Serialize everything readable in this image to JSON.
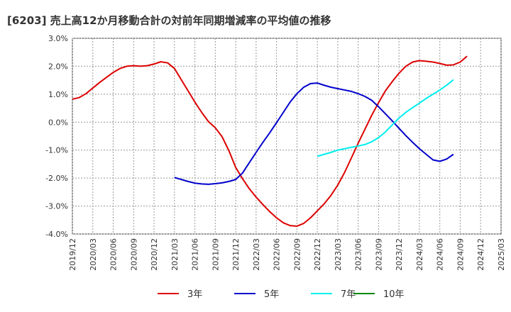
{
  "chart_data": {
    "type": "line",
    "title": "[6203]  売上高12か月移動合計の対前年同期増減率の平均値の推移",
    "xlabel": "",
    "ylabel": "",
    "ylim": [
      -4.0,
      3.0
    ],
    "yticks": [
      3.0,
      2.0,
      1.0,
      0.0,
      -1.0,
      -2.0,
      -3.0,
      -4.0
    ],
    "ytick_labels": [
      "3.0%",
      "2.0%",
      "1.0%",
      "0.0%",
      "-1.0%",
      "-2.0%",
      "-3.0%",
      "-4.0%"
    ],
    "xlim": [
      "2019/12",
      "2025/03"
    ],
    "xtick_labels": [
      "2019/12",
      "2020/03",
      "2020/06",
      "2020/09",
      "2020/12",
      "2021/03",
      "2021/06",
      "2021/09",
      "2021/12",
      "2022/03",
      "2022/06",
      "2022/09",
      "2022/12",
      "2023/03",
      "2023/06",
      "2023/09",
      "2023/12",
      "2024/03",
      "2024/06",
      "2024/09",
      "2024/12",
      "2025/03"
    ],
    "grid": true,
    "legend_position": "bottom",
    "series": [
      {
        "name": "3年",
        "color": "#dd0000",
        "points": [
          [
            "2019/12",
            0.82
          ],
          [
            "2020/01",
            0.88
          ],
          [
            "2020/02",
            1.02
          ],
          [
            "2020/03",
            1.22
          ],
          [
            "2020/04",
            1.42
          ],
          [
            "2020/05",
            1.6
          ],
          [
            "2020/06",
            1.78
          ],
          [
            "2020/07",
            1.92
          ],
          [
            "2020/08",
            2.0
          ],
          [
            "2020/09",
            2.02
          ],
          [
            "2020/10",
            2.0
          ],
          [
            "2020/11",
            2.02
          ],
          [
            "2020/12",
            2.08
          ],
          [
            "2020/13",
            2.16
          ],
          [
            "2021/02",
            2.12
          ],
          [
            "2021/03",
            1.92
          ],
          [
            "2021/04",
            1.52
          ],
          [
            "2021/05",
            1.12
          ],
          [
            "2021/06",
            0.72
          ],
          [
            "2021/07",
            0.35
          ],
          [
            "2021/08",
            0.02
          ],
          [
            "2021/09",
            -0.2
          ],
          [
            "2021/10",
            -0.52
          ],
          [
            "2021/11",
            -1.02
          ],
          [
            "2021/12",
            -1.62
          ],
          [
            "2022/01",
            -2.02
          ],
          [
            "2022/02",
            -2.38
          ],
          [
            "2022/03",
            -2.68
          ],
          [
            "2022/04",
            -2.95
          ],
          [
            "2022/05",
            -3.2
          ],
          [
            "2022/06",
            -3.42
          ],
          [
            "2022/07",
            -3.6
          ],
          [
            "2022/08",
            -3.7
          ],
          [
            "2022/09",
            -3.72
          ],
          [
            "2022/10",
            -3.62
          ],
          [
            "2022/11",
            -3.42
          ],
          [
            "2022/12",
            -3.17
          ],
          [
            "2023/01",
            -2.92
          ],
          [
            "2023/02",
            -2.62
          ],
          [
            "2023/03",
            -2.25
          ],
          [
            "2023/04",
            -1.8
          ],
          [
            "2023/05",
            -1.28
          ],
          [
            "2023/06",
            -0.75
          ],
          [
            "2023/07",
            -0.25
          ],
          [
            "2023/08",
            0.25
          ],
          [
            "2023/09",
            0.7
          ],
          [
            "2023/10",
            1.12
          ],
          [
            "2023/11",
            1.45
          ],
          [
            "2023/12",
            1.75
          ],
          [
            "2024/01",
            2.0
          ],
          [
            "2024/02",
            2.15
          ],
          [
            "2024/03",
            2.2
          ],
          [
            "2024/04",
            2.18
          ],
          [
            "2024/05",
            2.15
          ],
          [
            "2024/06",
            2.1
          ],
          [
            "2024/07",
            2.04
          ],
          [
            "2024/08",
            2.05
          ],
          [
            "2024/09",
            2.15
          ],
          [
            "2024/10",
            2.36
          ]
        ]
      },
      {
        "name": "5年",
        "color": "#0000cc",
        "points": [
          [
            "2021/03",
            -1.98
          ],
          [
            "2021/04",
            -2.05
          ],
          [
            "2021/05",
            -2.12
          ],
          [
            "2021/06",
            -2.18
          ],
          [
            "2021/07",
            -2.21
          ],
          [
            "2021/08",
            -2.22
          ],
          [
            "2021/09",
            -2.2
          ],
          [
            "2021/10",
            -2.17
          ],
          [
            "2021/11",
            -2.12
          ],
          [
            "2021/12",
            -2.05
          ],
          [
            "2022/01",
            -1.82
          ],
          [
            "2022/02",
            -1.45
          ],
          [
            "2022/03",
            -1.08
          ],
          [
            "2022/04",
            -0.72
          ],
          [
            "2022/05",
            -0.38
          ],
          [
            "2022/06",
            -0.02
          ],
          [
            "2022/07",
            0.35
          ],
          [
            "2022/08",
            0.72
          ],
          [
            "2022/09",
            1.02
          ],
          [
            "2022/10",
            1.25
          ],
          [
            "2022/11",
            1.38
          ],
          [
            "2022/12",
            1.4
          ],
          [
            "2023/01",
            1.32
          ],
          [
            "2023/02",
            1.25
          ],
          [
            "2023/03",
            1.2
          ],
          [
            "2023/04",
            1.15
          ],
          [
            "2023/05",
            1.1
          ],
          [
            "2023/06",
            1.02
          ],
          [
            "2023/07",
            0.92
          ],
          [
            "2023/08",
            0.78
          ],
          [
            "2023/09",
            0.55
          ],
          [
            "2023/10",
            0.3
          ],
          [
            "2023/11",
            0.05
          ],
          [
            "2023/12",
            -0.22
          ],
          [
            "2024/01",
            -0.48
          ],
          [
            "2024/02",
            -0.72
          ],
          [
            "2024/03",
            -0.95
          ],
          [
            "2024/04",
            -1.15
          ],
          [
            "2024/05",
            -1.35
          ],
          [
            "2024/06",
            -1.4
          ],
          [
            "2024/07",
            -1.32
          ],
          [
            "2024/08",
            -1.15
          ]
        ]
      },
      {
        "name": "7年",
        "color": "#00eeee",
        "points": [
          [
            "2022/12",
            -1.22
          ],
          [
            "2023/01",
            -1.15
          ],
          [
            "2023/02",
            -1.08
          ],
          [
            "2023/03",
            -1.0
          ],
          [
            "2023/04",
            -0.95
          ],
          [
            "2023/05",
            -0.9
          ],
          [
            "2023/06",
            -0.85
          ],
          [
            "2023/07",
            -0.8
          ],
          [
            "2023/08",
            -0.7
          ],
          [
            "2023/09",
            -0.55
          ],
          [
            "2023/10",
            -0.35
          ],
          [
            "2023/11",
            -0.1
          ],
          [
            "2023/12",
            0.15
          ],
          [
            "2024/01",
            0.35
          ],
          [
            "2024/02",
            0.52
          ],
          [
            "2024/03",
            0.68
          ],
          [
            "2024/04",
            0.85
          ],
          [
            "2024/05",
            1.0
          ],
          [
            "2024/06",
            1.15
          ],
          [
            "2024/07",
            1.32
          ],
          [
            "2024/08",
            1.52
          ]
        ]
      },
      {
        "name": "10年",
        "color": "#008800",
        "points": []
      }
    ]
  }
}
